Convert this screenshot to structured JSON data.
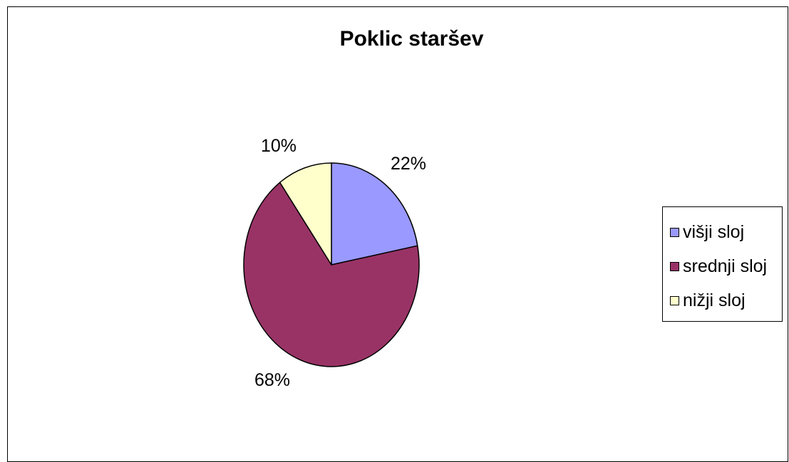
{
  "chart_data": {
    "type": "pie",
    "title": "Poklic staršev",
    "categories": [
      "višji sloj",
      "srednji sloj",
      "nižji sloj"
    ],
    "values": [
      22,
      68,
      10
    ],
    "value_labels": [
      "22%",
      "68%",
      "10%"
    ],
    "colors": [
      "#9999ff",
      "#993366",
      "#ffffcc"
    ],
    "legend_position": "right",
    "start_angle": "12 o'clock",
    "direction": "clockwise"
  }
}
